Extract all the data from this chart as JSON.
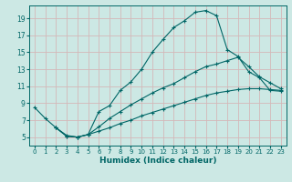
{
  "xlabel": "Humidex (Indice chaleur)",
  "bg_color": "#cce8e4",
  "line_color": "#006666",
  "grid_color": "#d4b8b8",
  "xlim": [
    -0.5,
    23.5
  ],
  "ylim": [
    4.0,
    20.5
  ],
  "xticks": [
    0,
    1,
    2,
    3,
    4,
    5,
    6,
    7,
    8,
    9,
    10,
    11,
    12,
    13,
    14,
    15,
    16,
    17,
    18,
    19,
    20,
    21,
    22,
    23
  ],
  "yticks": [
    5,
    7,
    9,
    11,
    13,
    15,
    17,
    19
  ],
  "line1_x": [
    0,
    1,
    2,
    3,
    4,
    5,
    6,
    7,
    8,
    9,
    10,
    11,
    12,
    13,
    14,
    15,
    16,
    17,
    18,
    19,
    20,
    21,
    22,
    23
  ],
  "line1_y": [
    8.5,
    7.2,
    6.1,
    5.2,
    5.0,
    5.3,
    8.0,
    8.7,
    10.5,
    11.5,
    13.0,
    15.0,
    16.5,
    17.9,
    18.7,
    19.7,
    19.9,
    19.3,
    15.3,
    14.5,
    12.7,
    12.0,
    10.5,
    10.4
  ],
  "line2_x": [
    2,
    3,
    4,
    5,
    6,
    7,
    8,
    9,
    10,
    11,
    12,
    13,
    14,
    15,
    16,
    17,
    18,
    19,
    20,
    21,
    22,
    23
  ],
  "line2_y": [
    6.1,
    5.1,
    5.0,
    5.3,
    6.2,
    7.2,
    8.0,
    8.8,
    9.5,
    10.2,
    10.8,
    11.3,
    12.0,
    12.7,
    13.3,
    13.6,
    14.0,
    14.4,
    13.3,
    12.1,
    11.4,
    10.7
  ],
  "line3_x": [
    2,
    3,
    4,
    5,
    6,
    7,
    8,
    9,
    10,
    11,
    12,
    13,
    14,
    15,
    16,
    17,
    18,
    19,
    20,
    21,
    22,
    23
  ],
  "line3_y": [
    6.1,
    5.1,
    5.0,
    5.3,
    5.7,
    6.1,
    6.6,
    7.0,
    7.5,
    7.9,
    8.3,
    8.7,
    9.1,
    9.5,
    9.9,
    10.2,
    10.4,
    10.6,
    10.7,
    10.7,
    10.6,
    10.5
  ]
}
